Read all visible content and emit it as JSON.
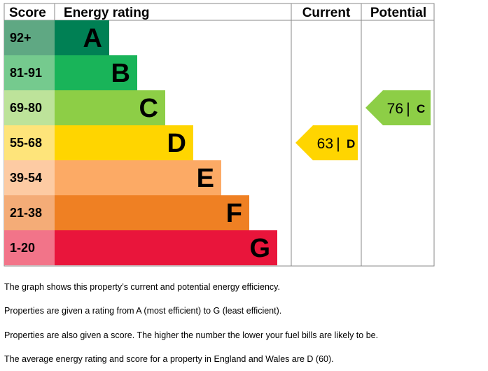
{
  "chart_data": {
    "type": "bar",
    "headers": {
      "score": "Score",
      "rating": "Energy rating",
      "current": "Current",
      "potential": "Potential"
    },
    "bands": [
      {
        "letter": "A",
        "range": "92+",
        "color": "#008054",
        "score_color": "#5fa883"
      },
      {
        "letter": "B",
        "range": "81-91",
        "color": "#19b459",
        "score_color": "#75ca8e"
      },
      {
        "letter": "C",
        "range": "69-80",
        "color": "#8dce46",
        "score_color": "#bde39a"
      },
      {
        "letter": "D",
        "range": "55-68",
        "color": "#ffd500",
        "score_color": "#fee47a"
      },
      {
        "letter": "E",
        "range": "39-54",
        "color": "#fcaa65",
        "score_color": "#fdcba3"
      },
      {
        "letter": "F",
        "range": "21-38",
        "color": "#ef8023",
        "score_color": "#f4ac77"
      },
      {
        "letter": "G",
        "range": "1-20",
        "color": "#e9153b",
        "score_color": "#f27489"
      }
    ],
    "current": {
      "score": "63",
      "separator": "|",
      "letter": "D",
      "color": "#ffd500"
    },
    "potential": {
      "score": "76",
      "separator": "|",
      "letter": "C",
      "color": "#8dce46"
    }
  },
  "notes": [
    "The graph shows this property’s current and potential energy efficiency.",
    "Properties are given a rating from A (most efficient) to G (least efficient).",
    "Properties are also given a score. The higher the number the lower your fuel bills are likely to be.",
    "The average energy rating and score for a property in England and Wales are D (60)."
  ]
}
